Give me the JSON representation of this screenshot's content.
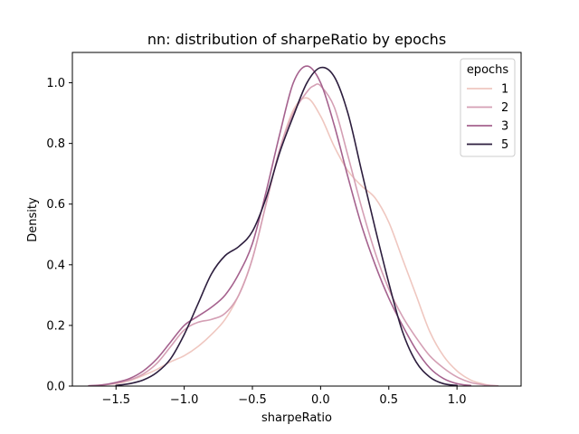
{
  "chart_data": {
    "type": "line",
    "title": "nn: distribution of sharpeRatio by epochs",
    "xlabel": "sharpeRatio",
    "ylabel": "Density",
    "xlim": [
      -1.82,
      1.47
    ],
    "ylim": [
      0,
      1.1
    ],
    "xticks": [
      -1.5,
      -1.0,
      -0.5,
      0.0,
      0.5,
      1.0
    ],
    "xtick_labels": [
      "−1.5",
      "−1.0",
      "−0.5",
      "0.0",
      "0.5",
      "1.0"
    ],
    "yticks": [
      0.0,
      0.2,
      0.4,
      0.6,
      0.8,
      1.0
    ],
    "ytick_labels": [
      "0.0",
      "0.2",
      "0.4",
      "0.6",
      "0.8",
      "1.0"
    ],
    "grid": false,
    "legend": {
      "title": "epochs",
      "placement": "top-right"
    },
    "series": [
      {
        "name": "1",
        "color": "#efc7c0",
        "x": [
          -1.65,
          -1.5,
          -1.4,
          -1.3,
          -1.2,
          -1.1,
          -1.0,
          -0.9,
          -0.8,
          -0.7,
          -0.6,
          -0.5,
          -0.4,
          -0.3,
          -0.2,
          -0.1,
          0.0,
          0.1,
          0.2,
          0.3,
          0.4,
          0.5,
          0.6,
          0.7,
          0.8,
          0.9,
          1.0,
          1.1,
          1.2,
          1.25
        ],
        "y": [
          0.002,
          0.008,
          0.018,
          0.035,
          0.055,
          0.08,
          0.1,
          0.13,
          0.17,
          0.22,
          0.3,
          0.42,
          0.6,
          0.78,
          0.91,
          0.95,
          0.89,
          0.79,
          0.71,
          0.66,
          0.62,
          0.54,
          0.42,
          0.3,
          0.18,
          0.1,
          0.05,
          0.02,
          0.006,
          0.002
        ]
      },
      {
        "name": "2",
        "color": "#d49fb4",
        "x": [
          -1.7,
          -1.6,
          -1.5,
          -1.4,
          -1.3,
          -1.2,
          -1.1,
          -1.0,
          -0.9,
          -0.8,
          -0.7,
          -0.6,
          -0.5,
          -0.4,
          -0.3,
          -0.2,
          -0.1,
          -0.05,
          0.0,
          0.1,
          0.2,
          0.3,
          0.4,
          0.5,
          0.6,
          0.7,
          0.8,
          0.9,
          1.0,
          1.1,
          1.2,
          1.3
        ],
        "y": [
          0.001,
          0.003,
          0.01,
          0.02,
          0.04,
          0.075,
          0.13,
          0.185,
          0.21,
          0.22,
          0.24,
          0.3,
          0.42,
          0.6,
          0.78,
          0.9,
          0.97,
          0.99,
          0.99,
          0.92,
          0.76,
          0.59,
          0.44,
          0.32,
          0.23,
          0.16,
          0.1,
          0.06,
          0.03,
          0.012,
          0.004,
          0.001
        ]
      },
      {
        "name": "3",
        "color": "#a5628e",
        "x": [
          -1.7,
          -1.6,
          -1.5,
          -1.4,
          -1.3,
          -1.2,
          -1.1,
          -1.0,
          -0.9,
          -0.8,
          -0.7,
          -0.6,
          -0.5,
          -0.4,
          -0.3,
          -0.2,
          -0.1,
          0.0,
          0.1,
          0.2,
          0.3,
          0.4,
          0.5,
          0.6,
          0.7,
          0.8,
          0.9,
          1.0,
          1.1
        ],
        "y": [
          0.001,
          0.004,
          0.012,
          0.025,
          0.05,
          0.09,
          0.145,
          0.2,
          0.23,
          0.26,
          0.3,
          0.37,
          0.47,
          0.64,
          0.83,
          1.0,
          1.055,
          1.0,
          0.86,
          0.69,
          0.53,
          0.4,
          0.29,
          0.2,
          0.12,
          0.06,
          0.025,
          0.008,
          0.002
        ]
      },
      {
        "name": "5",
        "color": "#2d1e3e",
        "x": [
          -1.5,
          -1.4,
          -1.3,
          -1.2,
          -1.1,
          -1.0,
          -0.9,
          -0.8,
          -0.7,
          -0.6,
          -0.5,
          -0.4,
          -0.3,
          -0.2,
          -0.1,
          0.0,
          0.1,
          0.2,
          0.3,
          0.4,
          0.5,
          0.6,
          0.7,
          0.8,
          0.9,
          1.0
        ],
        "y": [
          0.002,
          0.008,
          0.02,
          0.045,
          0.09,
          0.17,
          0.27,
          0.37,
          0.43,
          0.46,
          0.51,
          0.62,
          0.77,
          0.89,
          1.0,
          1.05,
          1.02,
          0.9,
          0.71,
          0.52,
          0.34,
          0.18,
          0.08,
          0.03,
          0.008,
          0.002
        ]
      }
    ]
  }
}
